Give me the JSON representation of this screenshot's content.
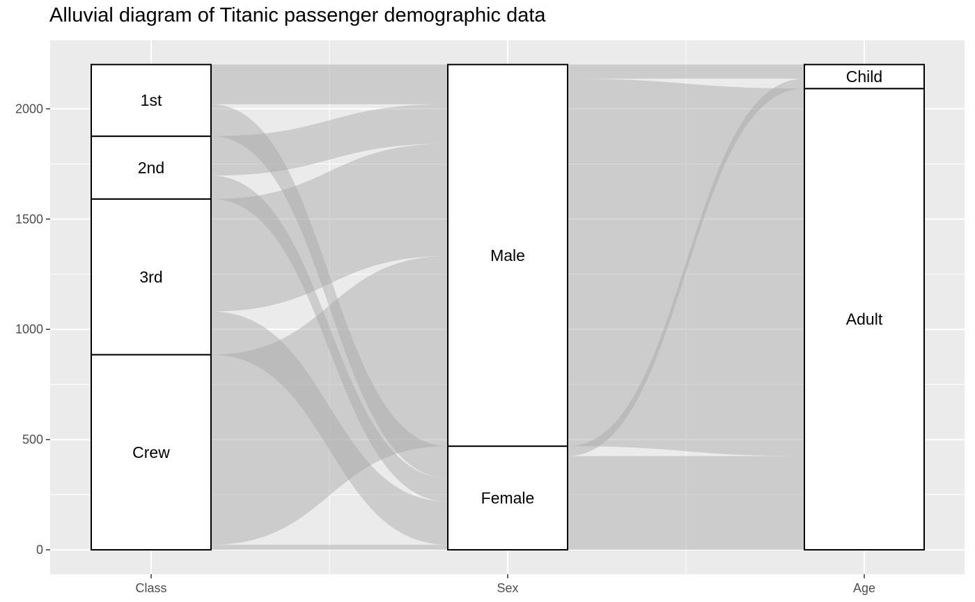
{
  "chart_data": {
    "type": "alluvial",
    "title": "Alluvial diagram of Titanic passenger demographic data",
    "xlabel": "",
    "ylabel": "",
    "axes": [
      "Class",
      "Sex",
      "Age"
    ],
    "ylim": [
      -110,
      2200
    ],
    "y_ticks": [
      0,
      500,
      1000,
      1500,
      2000
    ],
    "grid": true,
    "strata": {
      "Class": [
        {
          "label": "Crew",
          "value": 885
        },
        {
          "label": "3rd",
          "value": 706
        },
        {
          "label": "2nd",
          "value": 285
        },
        {
          "label": "1st",
          "value": 325
        }
      ],
      "Sex": [
        {
          "label": "Female",
          "value": 470
        },
        {
          "label": "Male",
          "value": 1731
        }
      ],
      "Age": [
        {
          "label": "Adult",
          "value": 2092
        },
        {
          "label": "Child",
          "value": 109
        }
      ]
    },
    "flows_class_sex": [
      {
        "from": "1st",
        "to": "Male",
        "value": 180
      },
      {
        "from": "1st",
        "to": "Female",
        "value": 145
      },
      {
        "from": "2nd",
        "to": "Male",
        "value": 179
      },
      {
        "from": "2nd",
        "to": "Female",
        "value": 106
      },
      {
        "from": "3rd",
        "to": "Male",
        "value": 510
      },
      {
        "from": "3rd",
        "to": "Female",
        "value": 196
      },
      {
        "from": "Crew",
        "to": "Male",
        "value": 862
      },
      {
        "from": "Crew",
        "to": "Female",
        "value": 23
      }
    ],
    "flows_sex_age": [
      {
        "from": "Male",
        "to": "Child",
        "value": 64
      },
      {
        "from": "Male",
        "to": "Adult",
        "value": 1667
      },
      {
        "from": "Female",
        "to": "Child",
        "value": 45
      },
      {
        "from": "Female",
        "to": "Adult",
        "value": 425
      }
    ]
  }
}
